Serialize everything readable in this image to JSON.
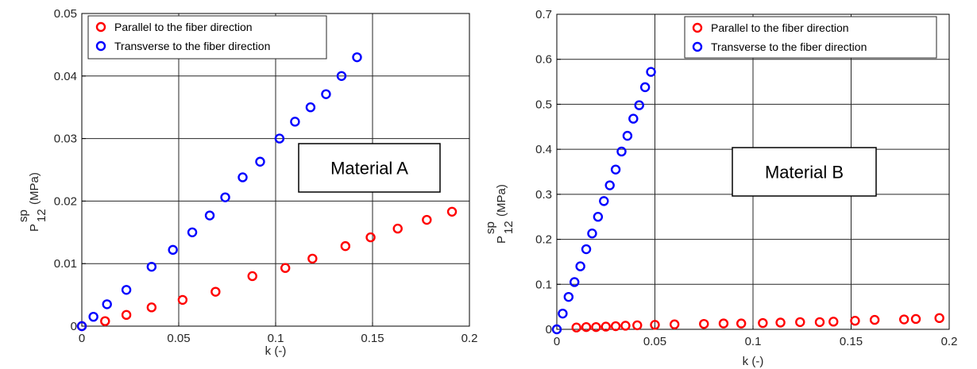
{
  "chart_data": [
    {
      "type": "scatter",
      "annotation": "Material A",
      "xlabel": "k (-)",
      "ylabel": {
        "main": "P",
        "sub": "12",
        "sup": "sp",
        "unit": "(MPa)"
      },
      "xlim": [
        0,
        0.2
      ],
      "ylim": [
        0,
        0.05
      ],
      "x_ticks": [
        "0",
        "0.05",
        "0.1",
        "0.15",
        "0.2"
      ],
      "y_ticks": [
        "0",
        "0.01",
        "0.02",
        "0.03",
        "0.04",
        "0.05"
      ],
      "grid": true,
      "legend_position": "top-left",
      "series": [
        {
          "name": "Parallel to the fiber direction",
          "color": "#ff0000",
          "x": [
            0,
            0.012,
            0.023,
            0.036,
            0.052,
            0.069,
            0.088,
            0.105,
            0.119,
            0.136,
            0.149,
            0.163,
            0.178,
            0.191
          ],
          "y": [
            0,
            0.0008,
            0.0018,
            0.003,
            0.0042,
            0.0055,
            0.008,
            0.0093,
            0.0108,
            0.0128,
            0.0142,
            0.0156,
            0.017,
            0.0183
          ]
        },
        {
          "name": "Transverse to the fiber direction",
          "color": "#0000ff",
          "x": [
            0,
            0.006,
            0.013,
            0.023,
            0.036,
            0.047,
            0.057,
            0.066,
            0.074,
            0.083,
            0.092,
            0.102,
            0.11,
            0.118,
            0.126,
            0.134,
            0.142
          ],
          "y": [
            0,
            0.0015,
            0.0035,
            0.0058,
            0.0095,
            0.0122,
            0.015,
            0.0177,
            0.0206,
            0.0238,
            0.0263,
            0.03,
            0.0327,
            0.035,
            0.0371,
            0.04,
            0.043
          ]
        }
      ]
    },
    {
      "type": "scatter",
      "annotation": "Material B",
      "xlabel": "k (-)",
      "ylabel": {
        "main": "P",
        "sub": "12",
        "sup": "sp",
        "unit": "(MPa)"
      },
      "xlim": [
        0,
        0.2
      ],
      "ylim": [
        0,
        0.7
      ],
      "x_ticks": [
        "0",
        "0.05",
        "0.1",
        "0.15",
        "0.2"
      ],
      "y_ticks": [
        "0",
        "0.1",
        "0.2",
        "0.3",
        "0.4",
        "0.5",
        "0.6",
        "0.7"
      ],
      "grid": true,
      "legend_position": "top-right",
      "series": [
        {
          "name": "Parallel to the fiber direction",
          "color": "#ff0000",
          "x": [
            0.01,
            0.015,
            0.02,
            0.025,
            0.03,
            0.035,
            0.041,
            0.05,
            0.06,
            0.075,
            0.085,
            0.094,
            0.105,
            0.114,
            0.124,
            0.134,
            0.141,
            0.152,
            0.162,
            0.177,
            0.183,
            0.195
          ],
          "y": [
            0.004,
            0.005,
            0.005,
            0.006,
            0.007,
            0.008,
            0.009,
            0.01,
            0.011,
            0.012,
            0.013,
            0.013,
            0.014,
            0.015,
            0.016,
            0.016,
            0.017,
            0.019,
            0.021,
            0.022,
            0.023,
            0.025
          ]
        },
        {
          "name": "Transverse to the fiber direction",
          "color": "#0000ff",
          "x": [
            0,
            0.003,
            0.006,
            0.009,
            0.012,
            0.015,
            0.018,
            0.021,
            0.024,
            0.027,
            0.03,
            0.033,
            0.036,
            0.039,
            0.042,
            0.045,
            0.048
          ],
          "y": [
            0,
            0.035,
            0.072,
            0.105,
            0.14,
            0.178,
            0.213,
            0.25,
            0.285,
            0.32,
            0.355,
            0.395,
            0.43,
            0.468,
            0.498,
            0.538,
            0.572
          ]
        }
      ]
    }
  ]
}
